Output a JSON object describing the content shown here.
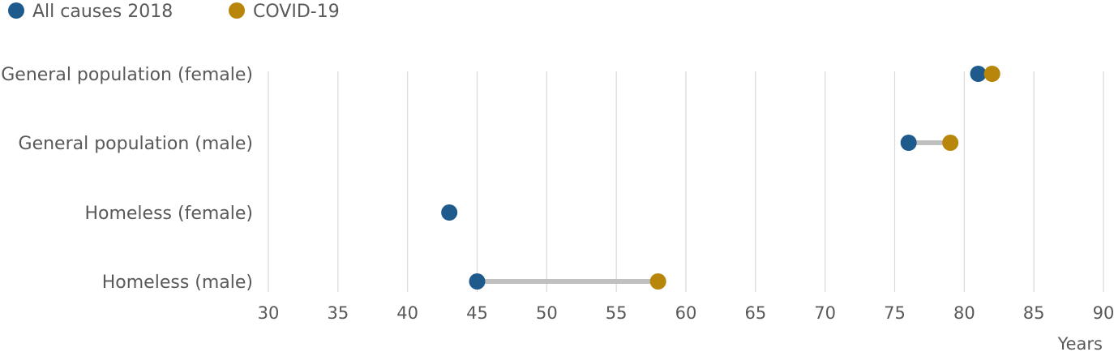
{
  "chart_data": {
    "type": "dumbbell",
    "title": "",
    "xlabel": "Years",
    "ylabel": "",
    "xlim": [
      30,
      90
    ],
    "x_ticks": [
      30,
      35,
      40,
      45,
      50,
      55,
      60,
      65,
      70,
      75,
      80,
      85,
      90
    ],
    "grid": "vertical",
    "legend_position": "top-left",
    "categories": [
      "General population (female)",
      "General population (male)",
      "Homeless (female)",
      "Homeless (male)"
    ],
    "series": [
      {
        "name": "All causes 2018",
        "color": "#1f5a8c",
        "values": [
          81,
          76,
          43,
          45
        ]
      },
      {
        "name": "COVID-19",
        "color": "#b8860b",
        "values": [
          82,
          79,
          null,
          58
        ]
      }
    ],
    "connector_color": "#c0c0c0"
  }
}
